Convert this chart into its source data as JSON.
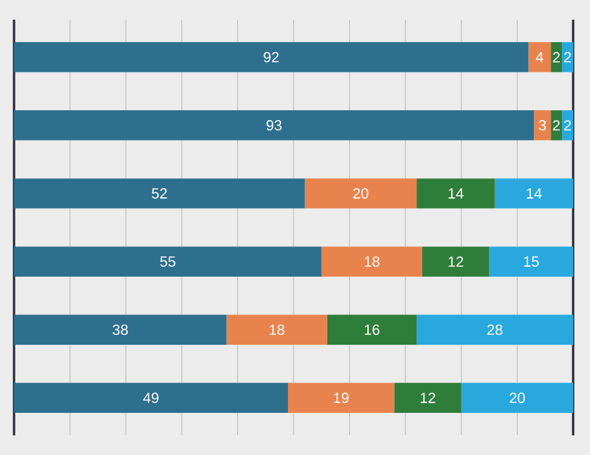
{
  "chart_data": {
    "type": "bar",
    "orientation": "horizontal",
    "stacked": true,
    "data_labels": true,
    "grid": "x",
    "tick_labels": false,
    "categories": [
      null,
      null,
      null,
      null,
      null,
      null
    ],
    "series": [
      {
        "color": "#2e6f8e",
        "values": [
          92,
          93,
          52,
          55,
          38,
          49
        ]
      },
      {
        "color": "#e8834e",
        "values": [
          4,
          3,
          20,
          18,
          18,
          19
        ]
      },
      {
        "color": "#2f7d3a",
        "values": [
          2,
          2,
          14,
          12,
          16,
          12
        ]
      },
      {
        "color": "#29a8de",
        "values": [
          2,
          2,
          14,
          15,
          28,
          20
        ]
      }
    ]
  }
}
